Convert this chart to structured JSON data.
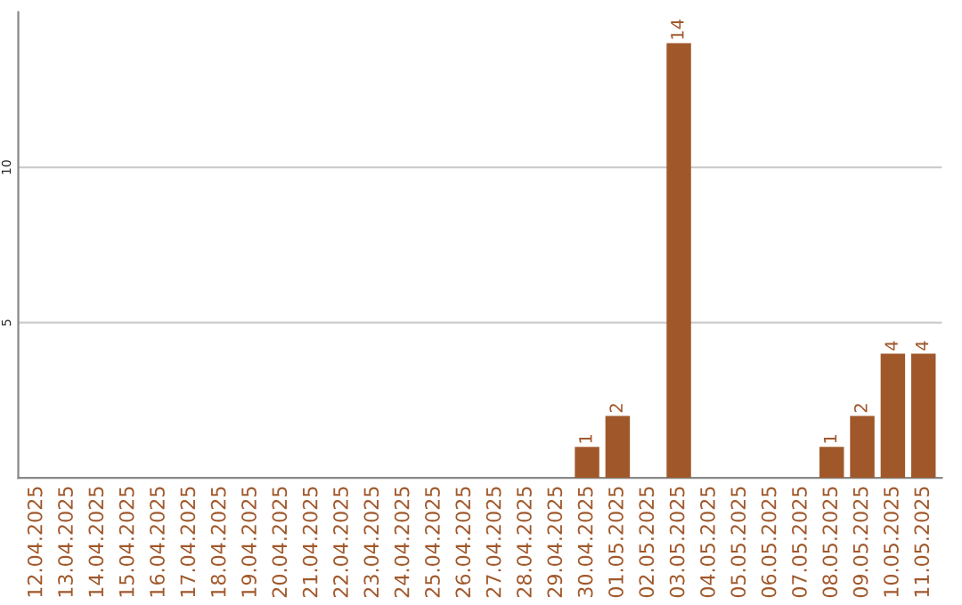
{
  "chart_data": {
    "type": "bar",
    "categories": [
      "12.04.2025",
      "13.04.2025",
      "14.04.2025",
      "15.04.2025",
      "16.04.2025",
      "17.04.2025",
      "18.04.2025",
      "19.04.2025",
      "20.04.2025",
      "21.04.2025",
      "22.04.2025",
      "23.04.2025",
      "24.04.2025",
      "25.04.2025",
      "26.04.2025",
      "27.04.2025",
      "28.04.2025",
      "29.04.2025",
      "30.04.2025",
      "01.05.2025",
      "02.05.2025",
      "03.05.2025",
      "04.05.2025",
      "05.05.2025",
      "06.05.2025",
      "07.05.2025",
      "08.05.2025",
      "09.05.2025",
      "10.05.2025",
      "11.05.2025"
    ],
    "values": [
      0,
      0,
      0,
      0,
      0,
      0,
      0,
      0,
      0,
      0,
      0,
      0,
      0,
      0,
      0,
      0,
      0,
      0,
      1,
      2,
      0,
      14,
      0,
      0,
      0,
      0,
      1,
      2,
      4,
      4
    ],
    "value_labels": [
      null,
      null,
      null,
      null,
      null,
      null,
      null,
      null,
      null,
      null,
      null,
      null,
      null,
      null,
      null,
      null,
      null,
      null,
      "1",
      "2",
      null,
      "14",
      null,
      null,
      null,
      null,
      "1",
      "2",
      "4",
      "4"
    ],
    "color": "#a0582b",
    "ylim": [
      0,
      15
    ],
    "yticks": [
      5,
      10
    ],
    "grid": "y"
  }
}
